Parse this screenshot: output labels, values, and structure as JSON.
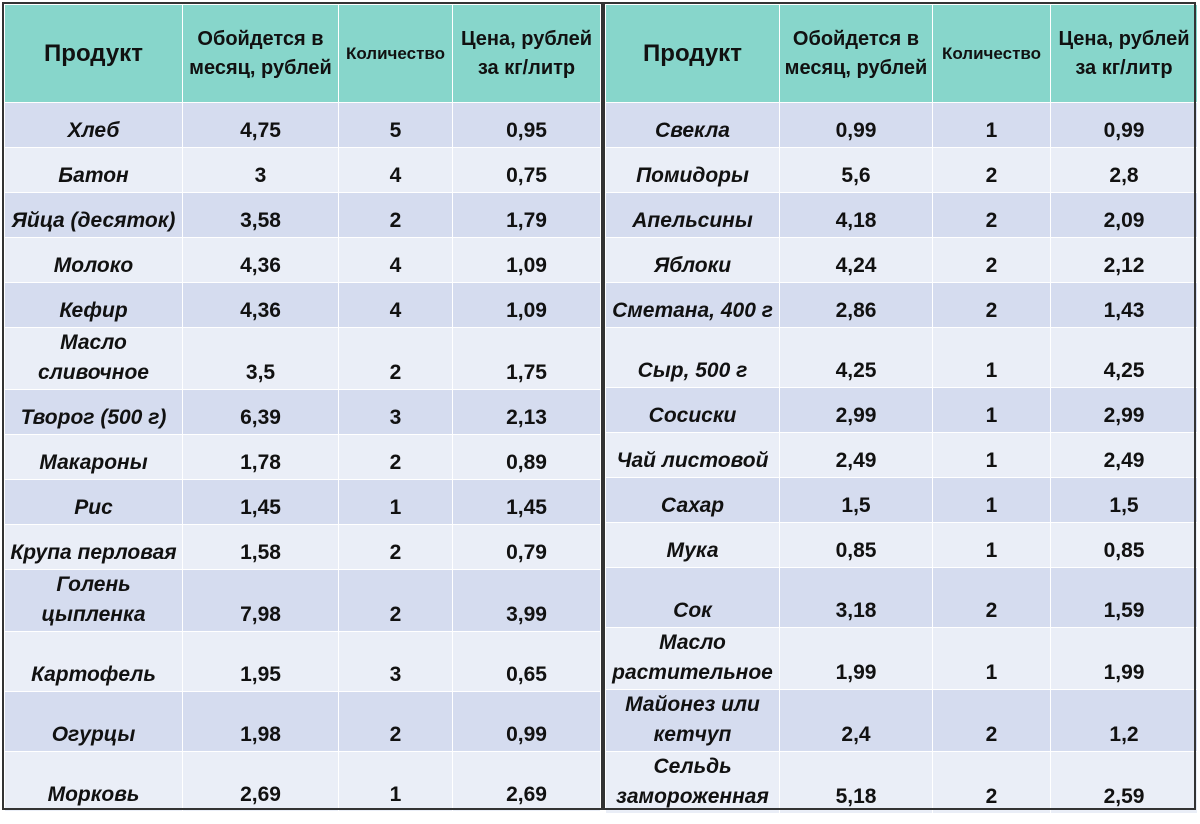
{
  "header": {
    "product": "Продукт",
    "cost_per_month": "Обойдется в месяц, рублей",
    "quantity": "Количество",
    "price_per_unit": "Цена, рублей за кг/литр"
  },
  "left_rows": [
    {
      "product": "Хлеб",
      "cost": "4,75",
      "qty": "5",
      "price": "0,95"
    },
    {
      "product": "Батон",
      "cost": "3",
      "qty": "4",
      "price": "0,75"
    },
    {
      "product": "Яйца (десяток)",
      "cost": "3,58",
      "qty": "2",
      "price": "1,79"
    },
    {
      "product": "Молоко",
      "cost": "4,36",
      "qty": "4",
      "price": "1,09"
    },
    {
      "product": "Кефир",
      "cost": "4,36",
      "qty": "4",
      "price": "1,09"
    },
    {
      "product": "Масло сливочное",
      "cost": "3,5",
      "qty": "2",
      "price": "1,75"
    },
    {
      "product": "Творог (500 г)",
      "cost": "6,39",
      "qty": "3",
      "price": "2,13"
    },
    {
      "product": "Макароны",
      "cost": "1,78",
      "qty": "2",
      "price": "0,89"
    },
    {
      "product": "Рис",
      "cost": "1,45",
      "qty": "1",
      "price": "1,45"
    },
    {
      "product": "Крупа перловая",
      "cost": "1,58",
      "qty": "2",
      "price": "0,79"
    },
    {
      "product": "Голень цыпленка",
      "cost": "7,98",
      "qty": "2",
      "price": "3,99"
    },
    {
      "product": "Картофель",
      "cost": "1,95",
      "qty": "3",
      "price": "0,65"
    },
    {
      "product": "Огурцы",
      "cost": "1,98",
      "qty": "2",
      "price": "0,99"
    },
    {
      "product": "Морковь",
      "cost": "2,69",
      "qty": "1",
      "price": "2,69"
    }
  ],
  "right_rows": [
    {
      "product": "Свекла",
      "cost": "0,99",
      "qty": "1",
      "price": "0,99"
    },
    {
      "product": "Помидоры",
      "cost": "5,6",
      "qty": "2",
      "price": "2,8"
    },
    {
      "product": "Апельсины",
      "cost": "4,18",
      "qty": "2",
      "price": "2,09"
    },
    {
      "product": "Яблоки",
      "cost": "4,24",
      "qty": "2",
      "price": "2,12"
    },
    {
      "product": "Сметана, 400 г",
      "cost": "2,86",
      "qty": "2",
      "price": "1,43"
    },
    {
      "product": "Сыр, 500 г",
      "cost": "4,25",
      "qty": "1",
      "price": "4,25"
    },
    {
      "product": "Сосиски",
      "cost": "2,99",
      "qty": "1",
      "price": "2,99"
    },
    {
      "product": "Чай листовой",
      "cost": "2,49",
      "qty": "1",
      "price": "2,49"
    },
    {
      "product": "Сахар",
      "cost": "1,5",
      "qty": "1",
      "price": "1,5"
    },
    {
      "product": "Мука",
      "cost": "0,85",
      "qty": "1",
      "price": "0,85"
    },
    {
      "product": "Сок",
      "cost": "3,18",
      "qty": "2",
      "price": "1,59"
    },
    {
      "product": "Масло растительное",
      "cost": "1,99",
      "qty": "1",
      "price": "1,99"
    },
    {
      "product": "Майонез или кетчуп",
      "cost": "2,4",
      "qty": "2",
      "price": "1,2"
    },
    {
      "product": "Сельдь замороженная",
      "cost": "5,18",
      "qty": "2",
      "price": "2,59"
    }
  ],
  "colors": {
    "header_bg": "#87d6cb",
    "row_dark": "#d5dcef",
    "row_light": "#eaeef7",
    "divider": "#333333"
  }
}
